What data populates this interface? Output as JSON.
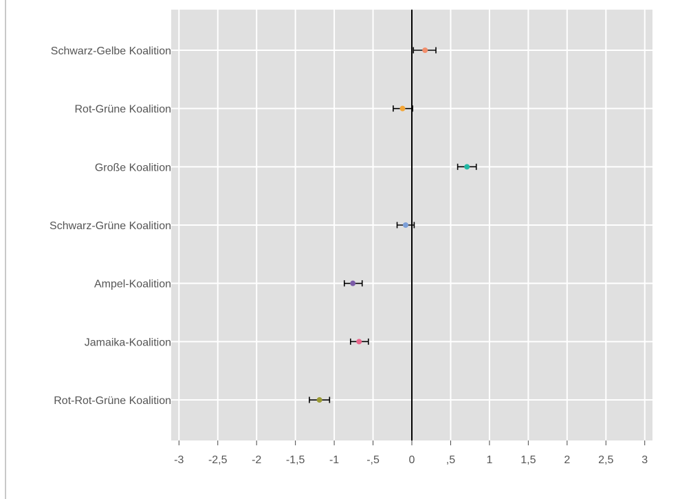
{
  "chart_data": {
    "type": "scatter",
    "subtype": "dot-and-whisker",
    "orientation": "horizontal",
    "categories": [
      "Schwarz-Gelbe Koalition",
      "Rot-Grüne Koalition",
      "Große Koalition",
      "Schwarz-Grüne Koalition",
      "Ampel-Koalition",
      "Jamaika-Koalition",
      "Rot-Rot-Grüne Koalition"
    ],
    "points": [
      {
        "category": "Schwarz-Gelbe Koalition",
        "value": 0.17,
        "ci_low": 0.02,
        "ci_high": 0.31,
        "color": "#f28e6b"
      },
      {
        "category": "Rot-Grüne Koalition",
        "value": -0.12,
        "ci_low": -0.24,
        "ci_high": 0.01,
        "color": "#f4a637"
      },
      {
        "category": "Große Koalition",
        "value": 0.71,
        "ci_low": 0.59,
        "ci_high": 0.83,
        "color": "#22b8a4"
      },
      {
        "category": "Schwarz-Grüne Koalition",
        "value": -0.08,
        "ci_low": -0.19,
        "ci_high": 0.03,
        "color": "#7c9fd8"
      },
      {
        "category": "Ampel-Koalition",
        "value": -0.76,
        "ci_low": -0.87,
        "ci_high": -0.64,
        "color": "#7b5ba8"
      },
      {
        "category": "Jamaika-Koalition",
        "value": -0.68,
        "ci_low": -0.79,
        "ci_high": -0.56,
        "color": "#e9668c"
      },
      {
        "category": "Rot-Rot-Grüne Koalition",
        "value": -1.19,
        "ci_low": -1.32,
        "ci_high": -1.06,
        "color": "#9a9a34"
      }
    ],
    "xlim": [
      -3.1,
      3.1
    ],
    "xticks": [
      -3,
      -2.5,
      -2,
      -1.5,
      -1,
      -0.5,
      0,
      0.5,
      1,
      1.5,
      2,
      2.5,
      3
    ],
    "xtick_labels": [
      "-3",
      "-2,5",
      "-2",
      "-1,5",
      "-1",
      "-,5",
      "0",
      ",5",
      "1",
      "1,5",
      "2",
      "2,5",
      "3"
    ],
    "reference_line": 0,
    "grid": true,
    "title": "",
    "xlabel": "",
    "ylabel": "",
    "colors": {
      "panel_background": "#e0e0e0",
      "grid": "#ffffff",
      "reference_line": "#000000",
      "error_bar": "#000000",
      "axis_text": "#555555",
      "frame": "#c8c8c8"
    }
  }
}
